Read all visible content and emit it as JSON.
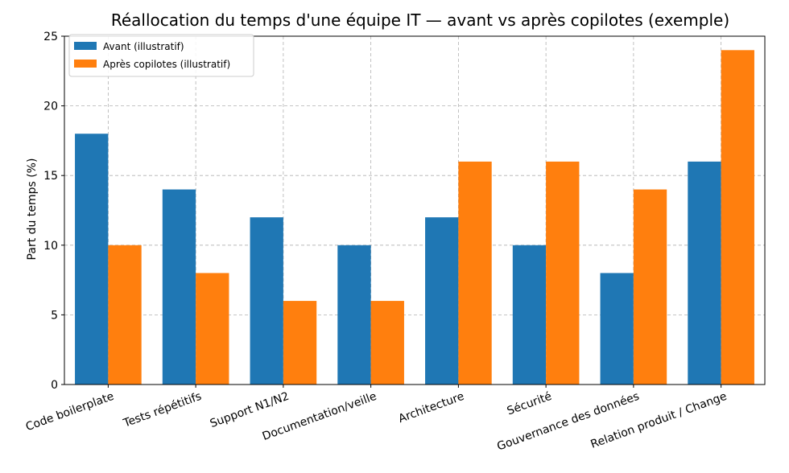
{
  "chart_data": {
    "type": "bar",
    "title": "Réallocation du temps d'une équipe IT — avant vs après copilotes (exemple)",
    "xlabel": "",
    "ylabel": "Part du temps (%)",
    "ylim": [
      0,
      25
    ],
    "yticks": [
      0,
      5,
      10,
      15,
      20,
      25
    ],
    "grid": true,
    "legend_position": "top-left",
    "categories": [
      "Code boilerplate",
      "Tests répétitifs",
      "Support N1/N2",
      "Documentation/veille",
      "Architecture",
      "Sécurité",
      "Gouvernance des données",
      "Relation produit / Change"
    ],
    "series": [
      {
        "name": "Avant (illustratif)",
        "color": "#1f77b4",
        "values": [
          18,
          14,
          12,
          10,
          12,
          10,
          8,
          16
        ]
      },
      {
        "name": "Après copilotes (illustratif)",
        "color": "#ff7f0e",
        "values": [
          10,
          8,
          6,
          6,
          16,
          16,
          14,
          24
        ]
      }
    ]
  }
}
